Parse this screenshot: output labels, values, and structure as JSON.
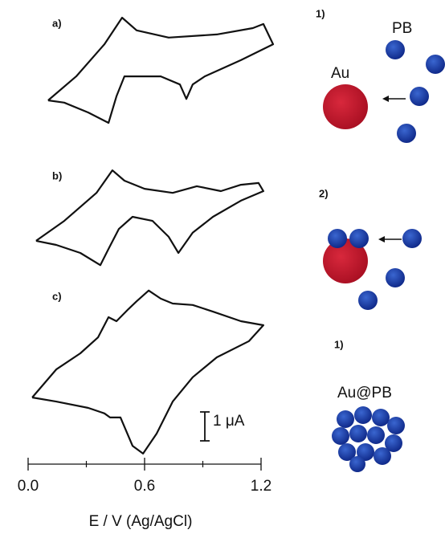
{
  "chart_data": {
    "type": "line",
    "xlabel": "E / V (Ag/AgCl)",
    "xlim": [
      0,
      1.2
    ],
    "ylim": [
      0,
      15.8
    ],
    "xticks": [
      {
        "value": 0,
        "label": "0.0"
      },
      0.6,
      1.2
    ],
    "xminorticks": [
      0.3,
      0.9
    ],
    "color": "#111111",
    "scale_bar": {
      "value": 1,
      "label": "1 μA"
    },
    "series": [
      {
        "name": "a)",
        "x": [
          0.103,
          0.248,
          0.393,
          0.484,
          0.559,
          0.724,
          0.972,
          1.158,
          1.212,
          1.262,
          1.096,
          0.91,
          0.848,
          0.815,
          0.782,
          0.683,
          0.496,
          0.455,
          0.414,
          0.31,
          0.186,
          0.103
        ],
        "values": [
          12.64,
          13.47,
          14.58,
          15.5,
          15.06,
          14.81,
          14.92,
          15.14,
          15.28,
          14.58,
          14.03,
          13.47,
          13.19,
          12.69,
          13.19,
          13.47,
          13.47,
          12.78,
          11.86,
          12.22,
          12.56,
          12.64
        ]
      },
      {
        "name": "b)",
        "x": [
          0.041,
          0.186,
          0.352,
          0.434,
          0.496,
          0.6,
          0.745,
          0.869,
          0.993,
          1.096,
          1.187,
          1.212,
          1.096,
          0.952,
          0.848,
          0.774,
          0.724,
          0.641,
          0.538,
          0.467,
          0.414,
          0.372,
          0.269,
          0.145,
          0.041
        ],
        "values": [
          7.78,
          8.47,
          9.44,
          10.22,
          9.86,
          9.58,
          9.44,
          9.67,
          9.5,
          9.72,
          9.78,
          9.5,
          9.17,
          8.61,
          8.06,
          7.36,
          7.92,
          8.47,
          8.61,
          8.19,
          7.5,
          6.94,
          7.36,
          7.64,
          7.78
        ]
      },
      {
        "name": "c)",
        "x": [
          0.021,
          0.145,
          0.269,
          0.36,
          0.414,
          0.455,
          0.517,
          0.559,
          0.621,
          0.683,
          0.745,
          0.848,
          0.952,
          1.096,
          1.212,
          1.138,
          0.972,
          0.848,
          0.745,
          0.662,
          0.592,
          0.538,
          0.476,
          0.422,
          0.393,
          0.31,
          0.145,
          0.021
        ],
        "values": [
          2.36,
          3.33,
          3.89,
          4.44,
          5.14,
          5.0,
          5.42,
          5.69,
          6.06,
          5.78,
          5.61,
          5.56,
          5.33,
          5.0,
          4.86,
          4.31,
          3.75,
          3.06,
          2.22,
          1.11,
          0.42,
          0.69,
          1.67,
          1.67,
          1.81,
          2.0,
          2.22,
          2.36
        ]
      }
    ]
  },
  "schematic": {
    "step1": {
      "label": "1)",
      "pb": "PB",
      "au": "Au"
    },
    "step2": {
      "label": "2)"
    },
    "step3": {
      "label": "1)",
      "product": "Au@PB"
    }
  }
}
